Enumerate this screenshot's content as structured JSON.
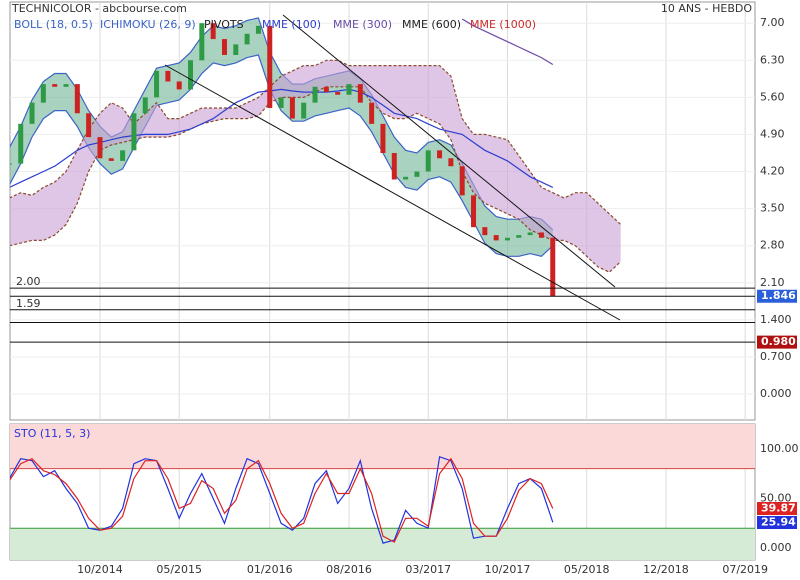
{
  "chart_data": {
    "type": "candlestick",
    "title": "TECHNICOLOR - abcbourse.com",
    "subtitle": "10 ANS - HEBDO",
    "categories": [
      null,
      null,
      null,
      null,
      null,
      null,
      null,
      null,
      "10/2014",
      null,
      null,
      null,
      null,
      null,
      null,
      "05/2015",
      null,
      null,
      null,
      null,
      null,
      null,
      null,
      "01/2016",
      null,
      null,
      null,
      null,
      null,
      null,
      "08/2016",
      null,
      null,
      null,
      null,
      null,
      null,
      "03/2017",
      null,
      null,
      null,
      null,
      null,
      null,
      "10/2017",
      null,
      null,
      null,
      null,
      null,
      null,
      "05/2018",
      null,
      null,
      null,
      null,
      null,
      null,
      "12/2018",
      null,
      null,
      null,
      null,
      null,
      null,
      "07/2019"
    ],
    "grid": true,
    "price": {
      "ylim": [
        -0.49,
        7.4
      ],
      "yticks": [
        {
          "value": 7,
          "label": "7.00"
        },
        {
          "value": 6.3,
          "label": "6.30"
        },
        {
          "value": 5.6,
          "label": "5.60"
        },
        {
          "value": 4.9,
          "label": "4.90"
        },
        {
          "value": 4.2,
          "label": "4.20"
        },
        {
          "value": 3.5,
          "label": "3.50"
        },
        {
          "value": 2.8,
          "label": "2.80"
        },
        {
          "value": 2.1,
          "label": "2.10"
        },
        {
          "value": 1.4,
          "label": "1.400"
        },
        {
          "value": 0.7,
          "label": "0.700"
        },
        {
          "value": 0,
          "label": "0.000"
        }
      ],
      "up_color": "#2e9a46",
      "down_color": "#cc2222",
      "close": [
        4.35,
        5.1,
        5.5,
        5.85,
        5.8,
        5.85,
        5.3,
        4.85,
        4.45,
        4.4,
        4.6,
        5.3,
        5.6,
        6.1,
        5.9,
        5.75,
        6.3,
        7.0,
        6.7,
        6.4,
        6.6,
        6.8,
        6.95,
        5.4,
        5.6,
        5.2,
        5.5,
        5.8,
        5.7,
        5.65,
        5.85,
        5.5,
        5.1,
        4.55,
        4.05,
        4.1,
        4.2,
        4.6,
        4.45,
        4.3,
        3.75,
        3.15,
        3.0,
        2.9,
        2.95,
        3.0,
        3.05,
        2.95,
        1.846,
        null,
        null,
        null,
        null,
        null,
        null,
        null,
        null,
        null,
        null,
        null,
        null,
        null,
        null,
        null,
        null,
        null
      ],
      "series": [
        {
          "name": "BOLL (18, 0.5)",
          "color": "#3b63c8",
          "fill": "#6fb596",
          "upper": [
            4.65,
            5.05,
            5.55,
            5.9,
            6.05,
            6.05,
            5.75,
            5.35,
            5.05,
            4.85,
            4.95,
            5.35,
            5.75,
            6.15,
            6.2,
            6.25,
            6.45,
            6.75,
            6.95,
            6.9,
            6.95,
            7.05,
            7.1,
            6.45,
            6.05,
            5.85,
            5.85,
            5.95,
            6.0,
            6.05,
            6.1,
            5.95,
            5.65,
            5.25,
            4.85,
            4.6,
            4.55,
            4.75,
            4.8,
            4.7,
            4.35,
            3.95,
            3.55,
            3.35,
            3.3,
            3.3,
            3.35,
            3.3,
            3.1,
            null,
            null,
            null,
            null,
            null,
            null,
            null,
            null,
            null,
            null,
            null,
            null,
            null,
            null,
            null,
            null,
            null
          ],
          "lower": [
            3.95,
            4.35,
            4.85,
            5.2,
            5.35,
            5.35,
            5.05,
            4.65,
            4.35,
            4.15,
            4.25,
            4.65,
            5.05,
            5.45,
            5.5,
            5.55,
            5.75,
            6.05,
            6.25,
            6.2,
            6.25,
            6.35,
            6.4,
            5.75,
            5.35,
            5.15,
            5.15,
            5.25,
            5.3,
            5.35,
            5.4,
            5.25,
            4.95,
            4.55,
            4.15,
            3.9,
            3.85,
            4.05,
            4.1,
            4.0,
            3.65,
            3.25,
            2.85,
            2.65,
            2.6,
            2.6,
            2.65,
            2.6,
            2.8,
            null,
            null,
            null,
            null,
            null,
            null,
            null,
            null,
            null,
            null,
            null,
            null,
            null,
            null,
            null,
            null,
            null
          ]
        },
        {
          "name": "ICHIMOKU (26, 9)",
          "color": "#3b63c8",
          "edge": "#8b4a2b",
          "fill": "#c9a0d6",
          "upper": [
            3.7,
            3.8,
            3.75,
            3.9,
            4.0,
            4.2,
            4.6,
            5.0,
            5.3,
            5.5,
            5.4,
            5.1,
            5.3,
            5.5,
            5.2,
            5.2,
            5.3,
            5.4,
            5.4,
            5.4,
            5.4,
            5.5,
            5.6,
            5.8,
            6.0,
            6.1,
            6.2,
            6.2,
            6.3,
            6.3,
            6.2,
            6.2,
            6.2,
            6.2,
            6.2,
            6.2,
            6.2,
            6.2,
            6.2,
            6.0,
            5.2,
            4.9,
            4.9,
            4.85,
            4.8,
            4.5,
            4.2,
            3.9,
            3.8,
            3.7,
            3.8,
            3.8,
            3.6,
            3.4,
            3.2,
            null,
            null,
            null,
            null,
            null,
            null,
            null,
            null,
            null,
            null,
            null
          ],
          "lower": [
            2.8,
            2.85,
            2.9,
            2.9,
            3.0,
            3.2,
            3.6,
            4.2,
            4.6,
            4.7,
            4.75,
            4.8,
            4.85,
            4.85,
            4.85,
            4.9,
            5.0,
            5.1,
            5.15,
            5.2,
            5.2,
            5.2,
            5.25,
            5.5,
            5.6,
            5.6,
            5.6,
            5.7,
            5.8,
            5.8,
            5.8,
            5.8,
            5.5,
            5.3,
            5.2,
            5.2,
            5.3,
            5.2,
            5.1,
            4.8,
            4.2,
            3.8,
            3.6,
            3.5,
            3.4,
            3.3,
            3.1,
            3.0,
            2.9,
            2.9,
            2.8,
            2.6,
            2.4,
            2.3,
            2.5,
            null,
            null,
            null,
            null,
            null,
            null,
            null,
            null,
            null,
            null,
            null
          ]
        },
        {
          "name": "PIVOTS",
          "color": "#222222"
        },
        {
          "name": "MME (100)",
          "color": "#2b3fcf",
          "values": [
            3.9,
            4.0,
            4.1,
            4.2,
            4.3,
            4.45,
            4.6,
            4.7,
            4.75,
            4.8,
            4.85,
            4.88,
            4.9,
            4.9,
            4.9,
            4.95,
            5.0,
            5.1,
            5.2,
            5.35,
            5.5,
            5.6,
            5.7,
            5.72,
            5.75,
            5.72,
            5.7,
            5.7,
            5.7,
            5.72,
            5.75,
            5.7,
            5.6,
            5.45,
            5.3,
            5.25,
            5.2,
            5.1,
            5.0,
            4.95,
            4.9,
            4.75,
            4.6,
            4.5,
            4.4,
            4.25,
            4.1,
            4.0,
            3.9,
            null,
            null,
            null,
            null,
            null,
            null,
            null,
            null,
            null,
            null,
            null,
            null,
            null,
            null,
            null,
            null,
            null
          ]
        },
        {
          "name": "MME (300)",
          "color": "#6a4aa8",
          "values": [
            null,
            null,
            null,
            null,
            null,
            null,
            null,
            null,
            null,
            null,
            null,
            null,
            null,
            null,
            null,
            null,
            null,
            null,
            null,
            null,
            null,
            null,
            null,
            null,
            null,
            null,
            null,
            null,
            null,
            null,
            null,
            null,
            null,
            null,
            null,
            null,
            null,
            null,
            null,
            null,
            7.08,
            6.95,
            6.85,
            6.75,
            6.65,
            6.55,
            6.45,
            6.35,
            6.22,
            null,
            null,
            null,
            null,
            null,
            null,
            null,
            null,
            null,
            null,
            null,
            null,
            null,
            null,
            null,
            null,
            null
          ]
        },
        {
          "name": "MME (600)",
          "color": "#222222"
        },
        {
          "name": "MME (1000)",
          "color": "#cc2a2a"
        }
      ],
      "levels": [
        {
          "value": 2.0,
          "label": "2.00"
        },
        {
          "value": 1.846,
          "badge": "#2b5fd9"
        },
        {
          "value": 1.59,
          "label": "1.59"
        },
        {
          "value": 1.35
        },
        {
          "value": 0.98,
          "label": "0.980",
          "badge": "#b01010"
        }
      ]
    },
    "oscillator": {
      "title": "STO (11, 5, 3)",
      "ylim": [
        -12,
        125
      ],
      "yticks": [
        {
          "value": 100,
          "label": "100.00"
        },
        {
          "value": 50,
          "label": "50.00"
        },
        {
          "value": 0,
          "label": "0.000"
        }
      ],
      "overbought": 80,
      "oversold": 20,
      "overbought_color": "#fcd9d9",
      "oversold_color": "#d6ebd6",
      "series": [
        {
          "color": "#2233dd",
          "values": [
            70,
            90,
            88,
            72,
            78,
            60,
            45,
            20,
            18,
            22,
            40,
            85,
            90,
            88,
            60,
            30,
            55,
            75,
            50,
            25,
            60,
            90,
            85,
            55,
            25,
            18,
            30,
            65,
            78,
            45,
            60,
            88,
            40,
            5,
            8,
            38,
            25,
            20,
            92,
            88,
            60,
            10,
            12,
            12,
            40,
            65,
            70,
            60,
            25.94,
            null,
            null,
            null,
            null,
            null,
            null,
            null,
            null,
            null,
            null,
            null,
            null,
            null,
            null,
            null,
            null,
            null
          ]
        },
        {
          "color": "#dd2222",
          "values": [
            68,
            85,
            90,
            78,
            74,
            65,
            50,
            30,
            18,
            20,
            32,
            70,
            88,
            88,
            70,
            40,
            45,
            68,
            60,
            35,
            48,
            80,
            88,
            65,
            35,
            20,
            25,
            55,
            75,
            55,
            55,
            80,
            55,
            12,
            6,
            30,
            30,
            22,
            75,
            90,
            70,
            25,
            12,
            12,
            30,
            58,
            70,
            65,
            39.87,
            null,
            null,
            null,
            null,
            null,
            null,
            null,
            null,
            null,
            null,
            null,
            null,
            null,
            null,
            null,
            null,
            null
          ]
        }
      ]
    }
  }
}
